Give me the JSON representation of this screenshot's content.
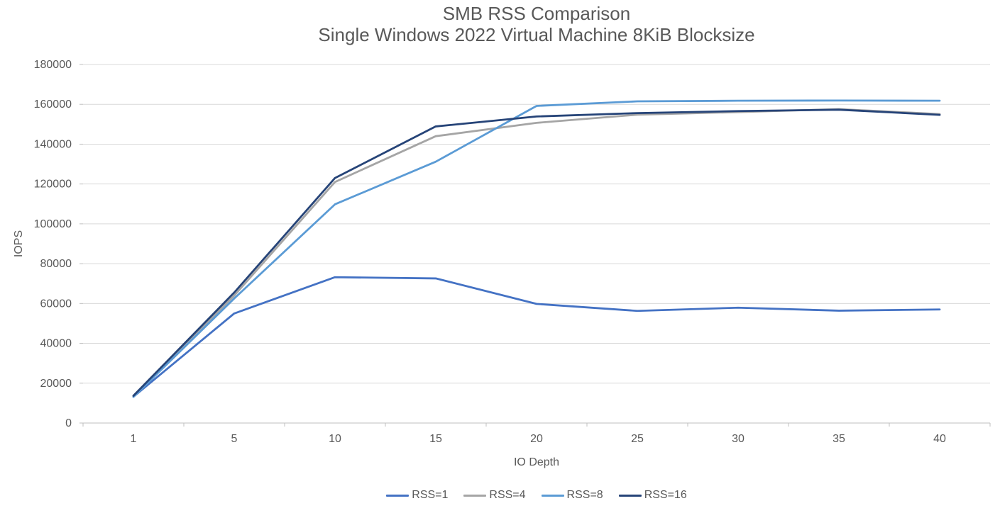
{
  "chart": {
    "title": "SMB RSS Comparison",
    "subtitle": "Single Windows 2022 Virtual Machine 8KiB Blocksize",
    "y_axis_title": "IOPS",
    "x_axis_title": "IO Depth"
  },
  "chart_data": {
    "type": "line",
    "title": "SMB RSS Comparison",
    "subtitle": "Single Windows 2022 Virtual Machine 8KiB Blocksize",
    "xlabel": "IO Depth",
    "ylabel": "IOPS",
    "categories": [
      "1",
      "5",
      "10",
      "15",
      "20",
      "25",
      "30",
      "35",
      "40"
    ],
    "ylim": [
      0,
      180000
    ],
    "y_tick_step": 20000,
    "y_tick_labels": [
      "0",
      "20000",
      "40000",
      "60000",
      "80000",
      "100000",
      "120000",
      "140000",
      "160000",
      "180000"
    ],
    "grid": true,
    "legend_position": "bottom",
    "series": [
      {
        "name": "RSS=1",
        "color": "#4472C4",
        "values": [
          13200,
          55000,
          73200,
          72600,
          59800,
          56300,
          57900,
          56400,
          57000
        ]
      },
      {
        "name": "RSS=4",
        "color": "#A5A5A5",
        "values": [
          13400,
          64000,
          121000,
          144000,
          150700,
          154800,
          156100,
          157600,
          155100
        ]
      },
      {
        "name": "RSS=8",
        "color": "#5B9BD5",
        "values": [
          13100,
          62500,
          109800,
          131200,
          159200,
          161500,
          161800,
          161900,
          161800
        ]
      },
      {
        "name": "RSS=16",
        "color": "#264478",
        "values": [
          13700,
          65500,
          123000,
          148900,
          153900,
          155600,
          156600,
          157300,
          154700
        ]
      }
    ],
    "colors": {
      "title_text": "#595959",
      "axis_text": "#595959",
      "gridline": "#D9D9D9",
      "axis_line": "#BFBFBF"
    }
  }
}
